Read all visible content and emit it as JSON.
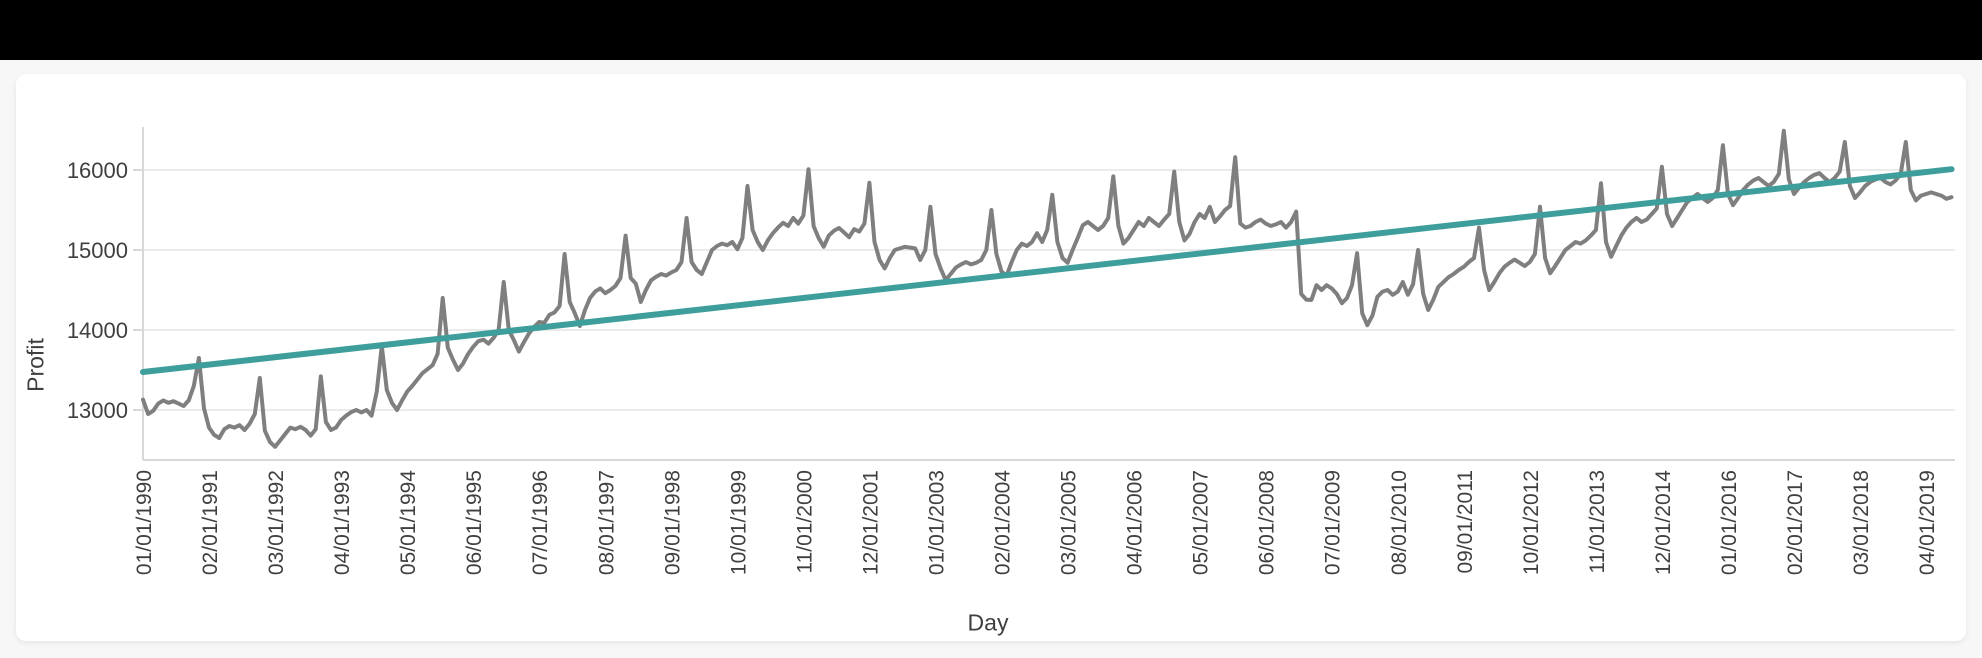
{
  "page": {
    "background_color": "#f7f7f8",
    "top_bar_color": "#000000",
    "card_background_color": "#ffffff"
  },
  "chart_data": {
    "type": "line",
    "title": "",
    "xlabel": "Day",
    "ylabel": "Profit",
    "grid": "horizontal",
    "legend": "none",
    "x_frequency": "monthly",
    "x_start": "01/01/1990",
    "x_tick_interval_months": 13,
    "x_tick_labels": [
      "01/01/1990",
      "02/01/1991",
      "03/01/1992",
      "04/01/1993",
      "05/01/1994",
      "06/01/1995",
      "07/01/1996",
      "08/01/1997",
      "09/01/1998",
      "10/01/1999",
      "11/01/2000",
      "12/01/2001",
      "01/01/2003",
      "02/01/2004",
      "03/01/2005",
      "04/01/2006",
      "05/01/2007",
      "06/01/2008",
      "07/01/2009",
      "08/01/2010",
      "09/01/2011",
      "10/01/2012",
      "11/01/2013",
      "12/01/2014",
      "01/01/2016",
      "02/01/2017",
      "03/01/2018",
      "04/01/2019"
    ],
    "y_tick_values": [
      16000,
      15000,
      14000,
      13000
    ],
    "ylim": [
      12375,
      16560
    ],
    "axis_text_color": "#3f3f3f",
    "grid_color": "#ebebeb",
    "axis_line_color": "#d8d8d8",
    "series": [
      {
        "name": "Profit",
        "color": "#7f7f7f",
        "stroke_width": 4,
        "monthly_by_year": [
          {
            "year": 1990,
            "values": [
              13130,
              12950,
              12990,
              13080,
              13120,
              13090,
              13110,
              13080,
              13050,
              13120,
              13300,
              13650
            ]
          },
          {
            "year": 1991,
            "values": [
              13020,
              12780,
              12690,
              12650,
              12760,
              12800,
              12780,
              12810,
              12750,
              12830,
              12950,
              13400
            ]
          },
          {
            "year": 1992,
            "values": [
              12740,
              12600,
              12540,
              12620,
              12700,
              12780,
              12760,
              12790,
              12750,
              12680,
              12760,
              13420
            ]
          },
          {
            "year": 1993,
            "values": [
              12850,
              12750,
              12780,
              12875,
              12930,
              12975,
              13000,
              12970,
              13000,
              12930,
              13225,
              13800
            ]
          },
          {
            "year": 1994,
            "values": [
              13250,
              13090,
              13000,
              13120,
              13230,
              13300,
              13380,
              13460,
              13510,
              13560,
              13700,
              14400
            ]
          },
          {
            "year": 1995,
            "values": [
              13780,
              13630,
              13500,
              13580,
              13700,
              13790,
              13860,
              13880,
              13830,
              13900,
              14000,
              14600
            ]
          },
          {
            "year": 1996,
            "values": [
              14000,
              13875,
              13730,
              13850,
              13960,
              14040,
              14100,
              14090,
              14190,
              14220,
              14300,
              14950
            ]
          },
          {
            "year": 1997,
            "values": [
              14350,
              14210,
              14050,
              14250,
              14400,
              14480,
              14520,
              14460,
              14500,
              14550,
              14650,
              15180
            ]
          },
          {
            "year": 1998,
            "values": [
              14650,
              14580,
              14350,
              14500,
              14620,
              14665,
              14700,
              14680,
              14720,
              14750,
              14850,
              15400
            ]
          },
          {
            "year": 1999,
            "values": [
              14850,
              14750,
              14700,
              14850,
              15000,
              15050,
              15080,
              15060,
              15100,
              15010,
              15150,
              15800
            ]
          },
          {
            "year": 2000,
            "values": [
              15250,
              15100,
              15000,
              15120,
              15210,
              15280,
              15340,
              15300,
              15400,
              15330,
              15430,
              16010
            ]
          },
          {
            "year": 2001,
            "values": [
              15300,
              15150,
              15040,
              15180,
              15240,
              15275,
              15220,
              15160,
              15260,
              15230,
              15330,
              15840
            ]
          },
          {
            "year": 2002,
            "values": [
              15100,
              14875,
              14770,
              14900,
              15000,
              15020,
              15040,
              15030,
              15020,
              14875,
              15000,
              15540
            ]
          },
          {
            "year": 2003,
            "values": [
              14950,
              14770,
              14625,
              14700,
              14780,
              14820,
              14850,
              14820,
              14840,
              14875,
              15000,
              15500
            ]
          },
          {
            "year": 2004,
            "values": [
              14950,
              14730,
              14680,
              14850,
              15000,
              15080,
              15050,
              15100,
              15210,
              15100,
              15250,
              15690
            ]
          },
          {
            "year": 2005,
            "values": [
              15100,
              14900,
              14840,
              15000,
              15150,
              15310,
              15350,
              15300,
              15250,
              15300,
              15400,
              15920
            ]
          },
          {
            "year": 2006,
            "values": [
              15300,
              15080,
              15150,
              15250,
              15350,
              15300,
              15400,
              15350,
              15300,
              15380,
              15450,
              15980
            ]
          },
          {
            "year": 2007,
            "values": [
              15350,
              15120,
              15200,
              15350,
              15450,
              15400,
              15540,
              15350,
              15420,
              15500,
              15550,
              16160
            ]
          },
          {
            "year": 2008,
            "values": [
              15330,
              15280,
              15300,
              15350,
              15380,
              15330,
              15300,
              15320,
              15350,
              15280,
              15350,
              15480
            ]
          },
          {
            "year": 2009,
            "values": [
              14450,
              14380,
              14375,
              14560,
              14500,
              14560,
              14520,
              14450,
              14335,
              14400,
              14560,
              14960
            ]
          },
          {
            "year": 2010,
            "values": [
              14210,
              14060,
              14180,
              14415,
              14480,
              14500,
              14440,
              14480,
              14600,
              14440,
              14570,
              15000
            ]
          },
          {
            "year": 2011,
            "values": [
              14450,
              14250,
              14380,
              14540,
              14600,
              14660,
              14700,
              14750,
              14790,
              14850,
              14900,
              15280
            ]
          },
          {
            "year": 2012,
            "values": [
              14750,
              14500,
              14600,
              14710,
              14790,
              14840,
              14880,
              14840,
              14800,
              14850,
              14950,
              15540
            ]
          },
          {
            "year": 2013,
            "values": [
              14900,
              14710,
              14800,
              14900,
              15000,
              15050,
              15100,
              15080,
              15120,
              15180,
              15250,
              15835
            ]
          },
          {
            "year": 2014,
            "values": [
              15100,
              14915,
              15050,
              15180,
              15280,
              15350,
              15400,
              15350,
              15380,
              15450,
              15520,
              16040
            ]
          },
          {
            "year": 2015,
            "values": [
              15450,
              15300,
              15400,
              15500,
              15600,
              15650,
              15700,
              15650,
              15600,
              15650,
              15750,
              16310
            ]
          },
          {
            "year": 2016,
            "values": [
              15700,
              15560,
              15650,
              15750,
              15820,
              15870,
              15900,
              15850,
              15800,
              15850,
              15950,
              16490
            ]
          },
          {
            "year": 2017,
            "values": [
              15880,
              15700,
              15780,
              15850,
              15900,
              15940,
              15960,
              15900,
              15850,
              15900,
              15980,
              16350
            ]
          },
          {
            "year": 2018,
            "values": [
              15800,
              15650,
              15720,
              15800,
              15850,
              15880,
              15900,
              15850,
              15820,
              15870,
              15950,
              16350
            ]
          },
          {
            "year": 2019,
            "values": [
              15750,
              15620,
              15680,
              15700,
              15720,
              15700,
              15680,
              15640,
              15660
            ]
          }
        ]
      },
      {
        "name": "Linear trend",
        "color": "#3e9e9c",
        "stroke_width": 6,
        "start_value": 13475,
        "end_value": 16010
      }
    ]
  }
}
